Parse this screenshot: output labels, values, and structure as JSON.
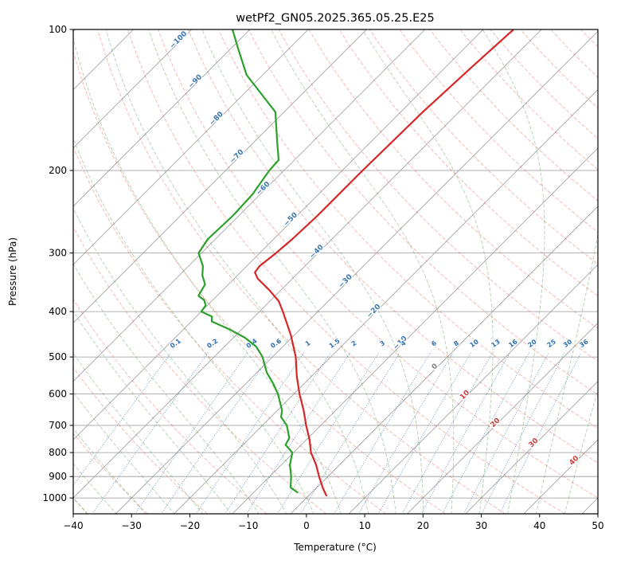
{
  "chart_data": {
    "type": "skewt-log-p",
    "title": "wetPf2_GN05.2025.365.05.25.E25",
    "xlabel": "Temperature (°C)",
    "ylabel": "Pressure (hPa)",
    "xlim": [
      -40,
      50
    ],
    "pressure_range": [
      100,
      1081
    ],
    "x_ticks": [
      -40,
      -30,
      -20,
      -10,
      0,
      10,
      20,
      30,
      40,
      50
    ],
    "y_ticks": [
      100,
      200,
      300,
      400,
      500,
      600,
      700,
      800,
      900,
      1000
    ],
    "grid_color": "#999999",
    "skew": "45deg",
    "isotherms": {
      "min": -130,
      "max": 50,
      "step": 10,
      "color": "#9b9b9b",
      "label_color_negative": "#3a77b0",
      "label_color_zero": "#7f7f7f",
      "label_color_positive": "#c9403e",
      "labels": [
        {
          "value": -100,
          "p": 106
        },
        {
          "value": -90,
          "p": 130
        },
        {
          "value": -80,
          "p": 156
        },
        {
          "value": -70,
          "p": 188
        },
        {
          "value": -60,
          "p": 220
        },
        {
          "value": -50,
          "p": 256
        },
        {
          "value": -40,
          "p": 300
        },
        {
          "value": -30,
          "p": 347
        },
        {
          "value": -20,
          "p": 402
        },
        {
          "value": -10,
          "p": 470
        },
        {
          "value": 0,
          "p": 528
        },
        {
          "value": 10,
          "p": 607
        },
        {
          "value": 20,
          "p": 696
        },
        {
          "value": 30,
          "p": 768
        },
        {
          "value": 40,
          "p": 838
        }
      ]
    },
    "dry_adiabats": {
      "min": -40,
      "max": 200,
      "step": 10,
      "color": "rgba(225,78,60,0.38)"
    },
    "moist_adiabats": {
      "min": -40,
      "max": 45,
      "step": 5,
      "color": "rgba(72,148,62,0.38)"
    },
    "mixing_ratio": {
      "values": [
        0.1,
        0.2,
        0.4,
        0.6,
        1,
        1.5,
        2,
        3,
        4,
        6,
        8,
        10,
        13,
        16,
        20,
        25,
        30,
        36
      ],
      "label_p": 472,
      "top_p": 490,
      "color": "rgba(45,110,178,0.85)",
      "label_color": "#2e6fb0"
    },
    "temperature_profile": {
      "name": "temperature",
      "color": "#d62728",
      "points_p_t": [
        [
          988,
          3
        ],
        [
          950,
          1
        ],
        [
          900,
          -1.5
        ],
        [
          850,
          -4
        ],
        [
          800,
          -7
        ],
        [
          750,
          -9.5
        ],
        [
          700,
          -12.5
        ],
        [
          650,
          -15.5
        ],
        [
          600,
          -19
        ],
        [
          550,
          -22.5
        ],
        [
          500,
          -26
        ],
        [
          450,
          -30.5
        ],
        [
          400,
          -36
        ],
        [
          380,
          -38.5
        ],
        [
          360,
          -42
        ],
        [
          340,
          -46
        ],
        [
          330,
          -47.5
        ],
        [
          320,
          -47.8
        ],
        [
          300,
          -47.2
        ],
        [
          280,
          -46.8
        ],
        [
          250,
          -46.5
        ],
        [
          200,
          -46.5
        ],
        [
          150,
          -46.2
        ],
        [
          120,
          -45.5
        ],
        [
          100,
          -44.8
        ]
      ]
    },
    "dewpoint_profile": {
      "name": "dewpoint",
      "color": "#2ca02c",
      "points_p_t": [
        [
          973,
          -2.5
        ],
        [
          950,
          -4.5
        ],
        [
          900,
          -6.3
        ],
        [
          850,
          -8.5
        ],
        [
          800,
          -10.2
        ],
        [
          770,
          -12.7
        ],
        [
          745,
          -13.2
        ],
        [
          700,
          -15.8
        ],
        [
          672,
          -18.2
        ],
        [
          650,
          -19.2
        ],
        [
          600,
          -22.7
        ],
        [
          570,
          -25.3
        ],
        [
          540,
          -28.3
        ],
        [
          500,
          -31.7
        ],
        [
          475,
          -34.6
        ],
        [
          455,
          -38
        ],
        [
          437,
          -42
        ],
        [
          420,
          -46.5
        ],
        [
          410,
          -47.3
        ],
        [
          400,
          -50
        ],
        [
          388,
          -50.3
        ],
        [
          378,
          -51.5
        ],
        [
          370,
          -53.2
        ],
        [
          350,
          -54
        ],
        [
          335,
          -56
        ],
        [
          320,
          -57.5
        ],
        [
          300,
          -60.5
        ],
        [
          280,
          -61.3
        ],
        [
          250,
          -61
        ],
        [
          225,
          -61.3
        ],
        [
          200,
          -62.5
        ],
        [
          190,
          -62.7
        ],
        [
          175,
          -65.8
        ],
        [
          150,
          -71.5
        ],
        [
          125,
          -82.8
        ],
        [
          110,
          -88.7
        ],
        [
          100,
          -93
        ]
      ]
    }
  }
}
